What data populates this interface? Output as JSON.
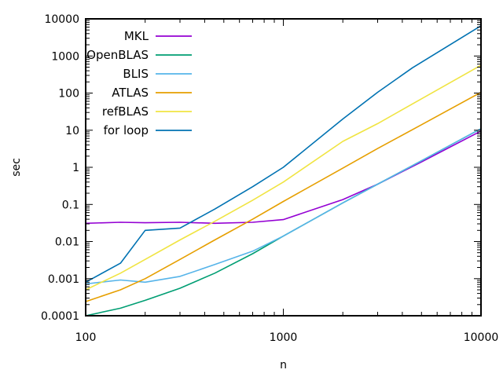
{
  "chart_data": {
    "type": "line",
    "title": "",
    "xlabel": "n",
    "ylabel": "sec",
    "x_scale": "log",
    "y_scale": "log",
    "xlim": [
      100,
      10000
    ],
    "ylim": [
      0.0001,
      10000
    ],
    "x_ticks": [
      {
        "value": 100,
        "label": "100"
      },
      {
        "value": 1000,
        "label": "1000"
      },
      {
        "value": 10000,
        "label": "10000"
      }
    ],
    "y_ticks": [
      {
        "value": 0.0001,
        "label": "0.0001"
      },
      {
        "value": 0.001,
        "label": "0.001"
      },
      {
        "value": 0.01,
        "label": "0.01"
      },
      {
        "value": 0.1,
        "label": "0.1"
      },
      {
        "value": 1,
        "label": "1"
      },
      {
        "value": 10,
        "label": "10"
      },
      {
        "value": 100,
        "label": "100"
      },
      {
        "value": 1000,
        "label": "1000"
      },
      {
        "value": 10000,
        "label": "10000"
      }
    ],
    "grid": false,
    "legend_position": "top-left",
    "series": [
      {
        "name": "MKL",
        "color": "#9400d3",
        "points": [
          [
            100,
            0.031
          ],
          [
            150,
            0.033
          ],
          [
            200,
            0.032
          ],
          [
            300,
            0.033
          ],
          [
            450,
            0.031
          ],
          [
            700,
            0.033
          ],
          [
            1000,
            0.039
          ],
          [
            2000,
            0.135
          ],
          [
            3000,
            0.35
          ],
          [
            5000,
            1.4
          ],
          [
            10000,
            9.5
          ]
        ]
      },
      {
        "name": "OpenBLAS",
        "color": "#009e73",
        "points": [
          [
            100,
            0.0001
          ],
          [
            150,
            0.00016
          ],
          [
            200,
            0.00026
          ],
          [
            300,
            0.00055
          ],
          [
            450,
            0.0014
          ],
          [
            700,
            0.0047
          ],
          [
            1000,
            0.014
          ],
          [
            2000,
            0.11
          ],
          [
            3000,
            0.35
          ],
          [
            5000,
            1.5
          ],
          [
            10000,
            11
          ]
        ]
      },
      {
        "name": "BLIS",
        "color": "#56b4e9",
        "points": [
          [
            100,
            0.00072
          ],
          [
            150,
            0.00092
          ],
          [
            200,
            0.0008
          ],
          [
            300,
            0.00115
          ],
          [
            450,
            0.0024
          ],
          [
            700,
            0.0055
          ],
          [
            1000,
            0.014
          ],
          [
            2000,
            0.11
          ],
          [
            3000,
            0.35
          ],
          [
            5000,
            1.5
          ],
          [
            10000,
            11
          ]
        ]
      },
      {
        "name": "ATLAS",
        "color": "#e69f00",
        "points": [
          [
            100,
            0.00024
          ],
          [
            150,
            0.0005
          ],
          [
            200,
            0.001
          ],
          [
            300,
            0.0033
          ],
          [
            450,
            0.011
          ],
          [
            700,
            0.04
          ],
          [
            1000,
            0.12
          ],
          [
            2000,
            0.95
          ],
          [
            3000,
            3.2
          ],
          [
            5000,
            14
          ],
          [
            10000,
            105
          ]
        ]
      },
      {
        "name": "refBLAS",
        "color": "#f0e442",
        "points": [
          [
            100,
            0.0005
          ],
          [
            150,
            0.0014
          ],
          [
            200,
            0.0033
          ],
          [
            300,
            0.011
          ],
          [
            450,
            0.035
          ],
          [
            700,
            0.13
          ],
          [
            1000,
            0.4
          ],
          [
            2000,
            5
          ],
          [
            3000,
            15
          ],
          [
            5000,
            70
          ],
          [
            10000,
            560
          ]
        ]
      },
      {
        "name": "for loop",
        "color": "#0072b2",
        "points": [
          [
            100,
            0.0008
          ],
          [
            150,
            0.0026
          ],
          [
            200,
            0.02
          ],
          [
            300,
            0.023
          ],
          [
            450,
            0.075
          ],
          [
            700,
            0.3
          ],
          [
            1000,
            1
          ],
          [
            2000,
            20
          ],
          [
            3000,
            105
          ],
          [
            4500,
            480
          ],
          [
            10000,
            6500
          ]
        ]
      }
    ]
  }
}
